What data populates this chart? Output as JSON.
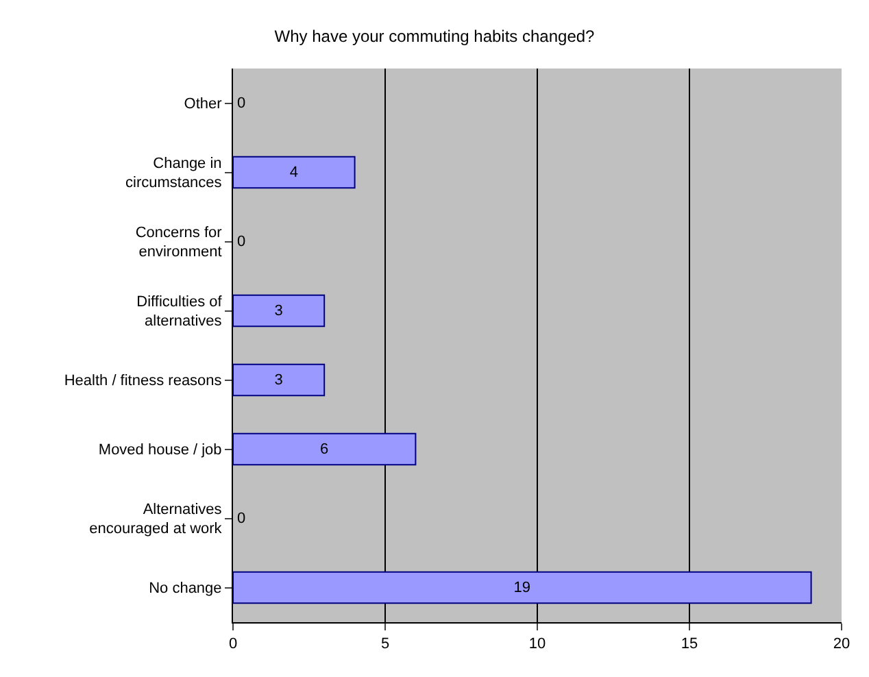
{
  "chart_data": {
    "type": "bar",
    "orientation": "horizontal",
    "title": "Why have your commuting habits changed?",
    "categories": [
      "Other",
      "Change in\ncircumstances",
      "Concerns for\nenvironment",
      "Difficulties of\nalternatives",
      "Health / fitness reasons",
      "Moved house / job",
      "Alternatives\nencouraged at work",
      "No change"
    ],
    "values": [
      0,
      4,
      0,
      3,
      3,
      6,
      0,
      19
    ],
    "color": "#9999ff",
    "xlim": [
      0,
      20
    ],
    "xticks": [
      0,
      5,
      10,
      15,
      20
    ],
    "grid": "x",
    "data_labels": true
  }
}
